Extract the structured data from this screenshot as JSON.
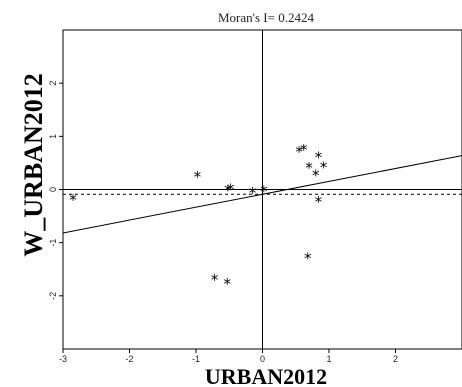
{
  "chart_data": {
    "type": "scatter",
    "title": "Moran's I= 0.2424",
    "xlabel": "URBAN2012",
    "ylabel": "W_URBAN2012",
    "xlim": [
      -3,
      3
    ],
    "ylim": [
      -3,
      3
    ],
    "x_ticks": [
      -3,
      -2,
      -1,
      0,
      1,
      2
    ],
    "y_ticks": [
      -2,
      -1,
      0,
      1,
      2
    ],
    "x_tick_labels": [
      "-3",
      "-2",
      "-1",
      "0",
      "1",
      "2"
    ],
    "y_tick_labels": [
      "-2",
      "-1",
      "0",
      "1",
      "2"
    ],
    "grid": false,
    "marker": "*",
    "points": [
      {
        "x": -2.85,
        "y": -0.18
      },
      {
        "x": -0.98,
        "y": 0.25
      },
      {
        "x": -0.52,
        "y": 0.0
      },
      {
        "x": -0.48,
        "y": 0.02
      },
      {
        "x": -0.15,
        "y": -0.05
      },
      {
        "x": 0.02,
        "y": -0.02
      },
      {
        "x": 0.55,
        "y": 0.72
      },
      {
        "x": 0.62,
        "y": 0.76
      },
      {
        "x": 0.7,
        "y": 0.42
      },
      {
        "x": 0.8,
        "y": 0.28
      },
      {
        "x": 0.84,
        "y": 0.62
      },
      {
        "x": 0.92,
        "y": 0.43
      },
      {
        "x": 0.84,
        "y": -0.22
      },
      {
        "x": -0.72,
        "y": -1.68
      },
      {
        "x": -0.53,
        "y": -1.76
      },
      {
        "x": 0.68,
        "y": -1.28
      }
    ],
    "regression": {
      "slope": 0.2424,
      "intercept": -0.09
    },
    "reference_lines": {
      "horizontal_solid": 0,
      "vertical_solid": 0,
      "horizontal_dashed": -0.09
    }
  }
}
